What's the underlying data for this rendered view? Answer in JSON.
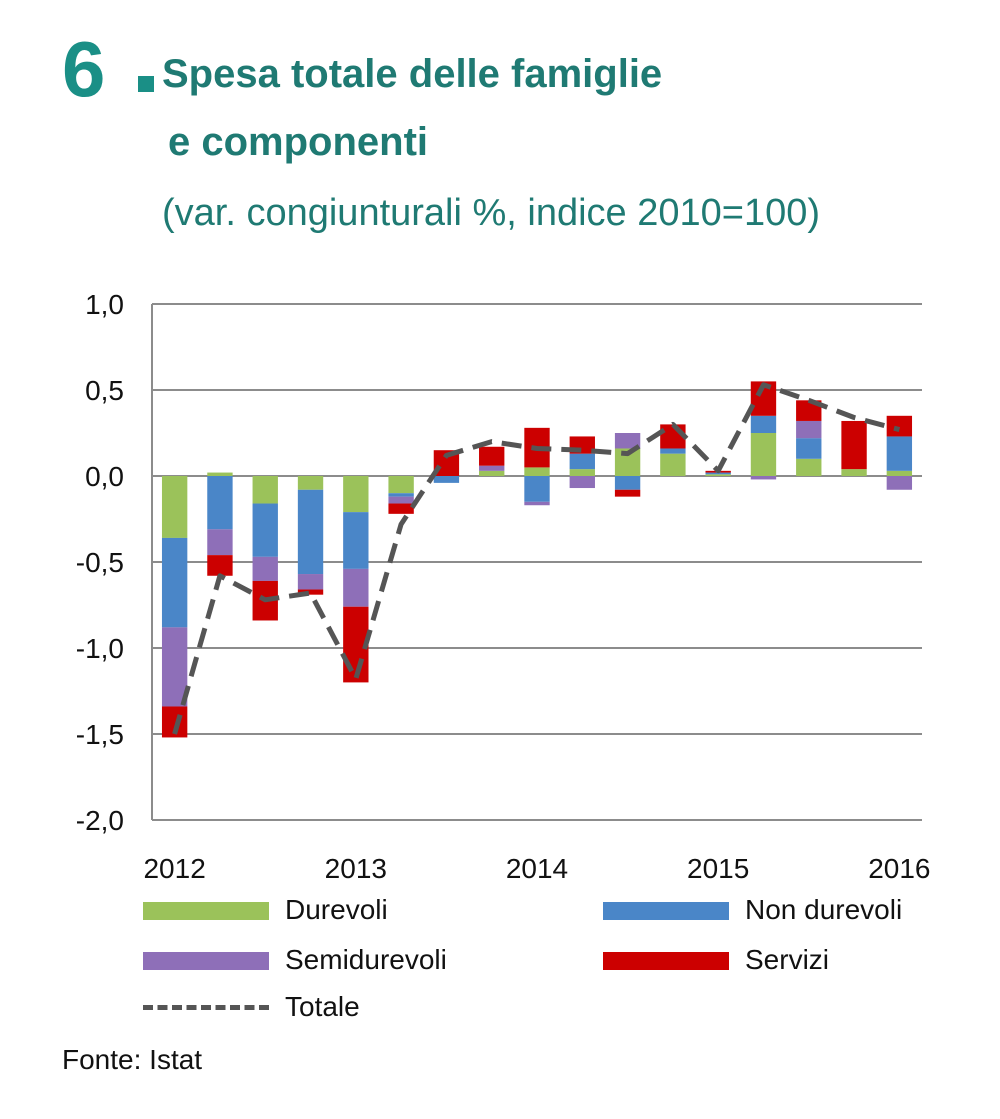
{
  "title": {
    "number": "6",
    "line1": "Spesa totale delle famiglie",
    "line2": "e componenti",
    "subtitle": "(var. congiunturali %, indice 2010=100)"
  },
  "colors": {
    "title": "#1f7a73",
    "number": "#1a8f86",
    "grid": "#8c8c8c",
    "axis_text": "#111111"
  },
  "source": "Fonte: Istat",
  "chart_data": {
    "type": "bar",
    "stacked": true,
    "x_labels": [
      "2012",
      "2013",
      "2014",
      "2015",
      "2016"
    ],
    "x_label_quarters": [
      0,
      4,
      8,
      12,
      16
    ],
    "ylim": [
      -2.0,
      1.0
    ],
    "yticks": [
      "1,0",
      "0,5",
      "0,0",
      "-0,5",
      "-1,0",
      "-1,5",
      "-2,0"
    ],
    "ytick_values": [
      1.0,
      0.5,
      0.0,
      -0.5,
      -1.0,
      -1.5,
      -2.0
    ],
    "grid": true,
    "legend_position": "bottom",
    "series": [
      {
        "name": "Durevoli",
        "color": "#9bc25a",
        "values": [
          -0.36,
          0.02,
          -0.16,
          -0.08,
          -0.21,
          -0.1,
          0.0,
          0.03,
          0.05,
          0.04,
          0.16,
          0.13,
          0.01,
          0.25,
          0.1,
          0.04,
          0.03
        ]
      },
      {
        "name": "Non durevoli",
        "color": "#4a86c8",
        "values": [
          -0.52,
          -0.31,
          -0.31,
          -0.49,
          -0.33,
          -0.02,
          -0.04,
          0.0,
          -0.15,
          0.09,
          -0.08,
          0.03,
          0.01,
          0.1,
          0.12,
          0.0,
          0.2
        ]
      },
      {
        "name": "Semidurevoli",
        "color": "#8e6fb8",
        "values": [
          -0.46,
          -0.15,
          -0.14,
          -0.09,
          -0.22,
          -0.04,
          0.0,
          0.03,
          -0.02,
          -0.07,
          0.09,
          0.0,
          0.0,
          -0.02,
          0.1,
          0.0,
          -0.08
        ]
      },
      {
        "name": "Servizi",
        "color": "#cc0000",
        "values": [
          -0.18,
          -0.12,
          -0.23,
          -0.03,
          -0.44,
          -0.06,
          0.15,
          0.11,
          0.23,
          0.1,
          -0.04,
          0.14,
          0.01,
          0.2,
          0.12,
          0.28,
          0.12
        ]
      }
    ],
    "total": {
      "name": "Totale",
      "color": "#555555",
      "values": [
        -1.5,
        -0.58,
        -0.72,
        -0.68,
        -1.18,
        -0.28,
        0.12,
        0.2,
        0.16,
        0.15,
        0.13,
        0.3,
        0.03,
        0.53,
        0.44,
        0.34,
        0.27
      ]
    }
  }
}
